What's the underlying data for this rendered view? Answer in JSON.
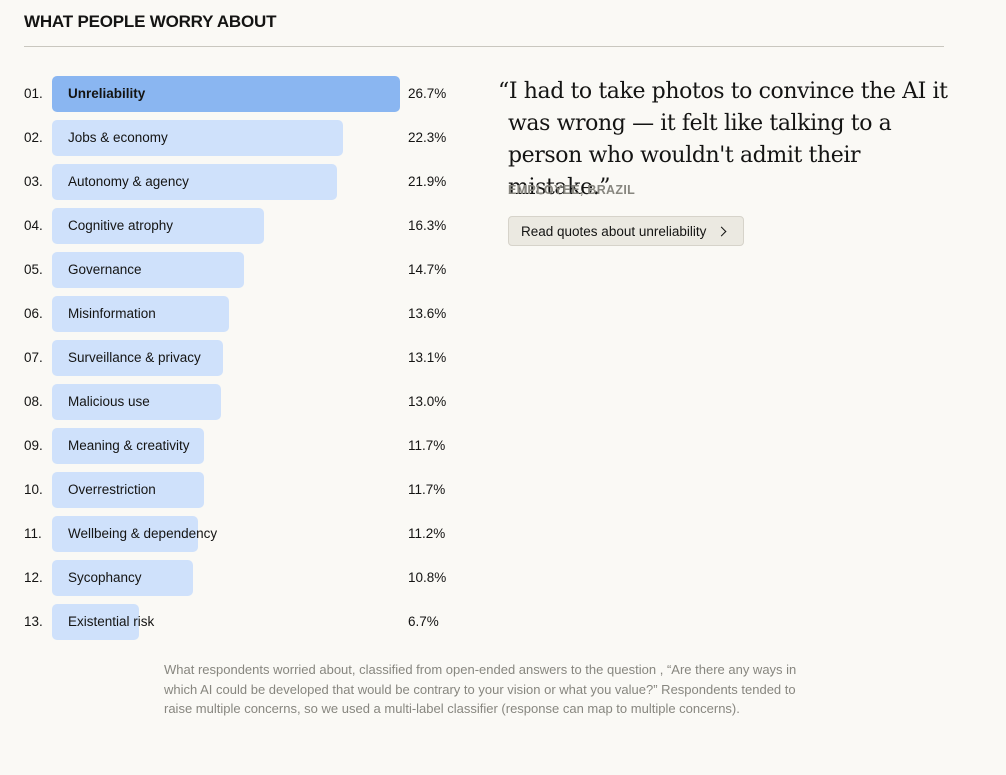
{
  "header": {
    "title": "WHAT PEOPLE WORRY ABOUT"
  },
  "chart_data": {
    "type": "bar",
    "orientation": "horizontal",
    "ranks": [
      "01.",
      "02.",
      "03.",
      "04.",
      "05.",
      "06.",
      "07.",
      "08.",
      "09.",
      "10.",
      "11.",
      "12.",
      "13."
    ],
    "categories": [
      "Unreliability",
      "Jobs & economy",
      "Autonomy & agency",
      "Cognitive atrophy",
      "Governance",
      "Misinformation",
      "Surveillance & privacy",
      "Malicious use",
      "Meaning & creativity",
      "Overrestriction",
      "Wellbeing & dependency",
      "Sycophancy",
      "Existential risk"
    ],
    "values": [
      26.7,
      22.3,
      21.9,
      16.3,
      14.7,
      13.6,
      13.1,
      13.0,
      11.7,
      11.7,
      11.2,
      10.8,
      6.7
    ],
    "value_labels": [
      "26.7%",
      "22.3%",
      "21.9%",
      "16.3%",
      "14.7%",
      "13.6%",
      "13.1%",
      "13.0%",
      "11.7%",
      "11.7%",
      "11.2%",
      "10.8%",
      "6.7%"
    ],
    "highlighted_index": 0,
    "xlim": [
      0,
      26.7
    ],
    "colors": {
      "highlight": "#8ab6f1",
      "default": "#cfe1fb"
    }
  },
  "quote": {
    "text": "“I had to take photos to convince the AI it was wrong — it felt like talking to a person who wouldn't admit their mistake.”",
    "attribution": "EMPLOYEE, BRAZIL",
    "button_label": "Read quotes about unreliability",
    "button_icon": "chevron-right-icon"
  },
  "caption": "What respondents worried about, classified from open-ended answers to the question , “Are there any ways in which AI could be developed that would be contrary to your vision or what you value?” Respondents tended to raise multiple concerns, so we used a multi-label classifier (response can map to multiple concerns)."
}
